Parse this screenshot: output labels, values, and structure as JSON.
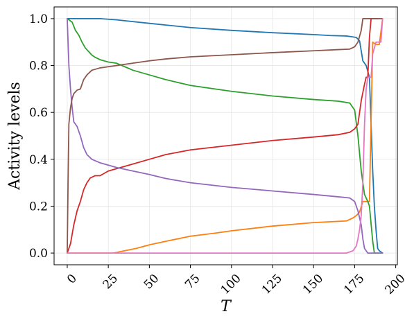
{
  "chart_data": {
    "type": "line",
    "xlabel": "T",
    "ylabel": "Activity levels",
    "xlim": [
      -8,
      201
    ],
    "ylim": [
      -0.05,
      1.05
    ],
    "xticks": [
      0,
      25,
      50,
      75,
      100,
      125,
      150,
      175,
      200
    ],
    "yticks": [
      0.0,
      0.2,
      0.4,
      0.6,
      0.8,
      1.0
    ],
    "ytick_labels": [
      "0.0",
      "0.2",
      "0.4",
      "0.6",
      "0.8",
      "1.0"
    ],
    "grid": true,
    "series": [
      {
        "color": "#1f77b4",
        "x": [
          0,
          20,
          30,
          50,
          75,
          100,
          125,
          150,
          160,
          170,
          176,
          178,
          180,
          182,
          184,
          185,
          186,
          187,
          188,
          189,
          190,
          192
        ],
        "y": [
          1.0,
          1.0,
          0.995,
          0.98,
          0.962,
          0.95,
          0.94,
          0.932,
          0.928,
          0.926,
          0.92,
          0.905,
          0.82,
          0.8,
          0.75,
          0.55,
          0.35,
          0.2,
          0.1,
          0.02,
          0.01,
          0.0
        ]
      },
      {
        "color": "#ff7f0e",
        "x": [
          0,
          20,
          28,
          35,
          42,
          50,
          60,
          75,
          90,
          100,
          125,
          150,
          170,
          174,
          176,
          178,
          180,
          182,
          184,
          186,
          188,
          190,
          192
        ],
        "y": [
          0.0,
          0.0,
          0.0,
          0.01,
          0.02,
          0.035,
          0.05,
          0.072,
          0.085,
          0.095,
          0.115,
          0.13,
          0.137,
          0.15,
          0.16,
          0.175,
          0.22,
          0.22,
          0.22,
          0.9,
          0.89,
          0.89,
          1.0
        ]
      },
      {
        "color": "#2ca02c",
        "x": [
          0,
          3,
          5,
          7,
          9,
          11,
          13,
          15,
          17,
          20,
          25,
          30,
          35,
          40,
          50,
          60,
          75,
          100,
          125,
          150,
          165,
          172,
          175,
          177,
          179,
          181,
          183,
          184,
          186,
          187,
          188,
          190
        ],
        "y": [
          1.0,
          0.985,
          0.95,
          0.93,
          0.9,
          0.875,
          0.86,
          0.845,
          0.835,
          0.825,
          0.815,
          0.81,
          0.795,
          0.78,
          0.76,
          0.74,
          0.715,
          0.69,
          0.67,
          0.655,
          0.648,
          0.64,
          0.61,
          0.5,
          0.35,
          0.25,
          0.22,
          0.2,
          0.05,
          0.0,
          0.0,
          0.0
        ]
      },
      {
        "color": "#d62728",
        "x": [
          0,
          1,
          2,
          4,
          6,
          8,
          10,
          12,
          14,
          17,
          20,
          25,
          30,
          40,
          50,
          60,
          75,
          100,
          125,
          150,
          165,
          172,
          175,
          177,
          179,
          181,
          182,
          183,
          184,
          185,
          186,
          188,
          190
        ],
        "y": [
          0.0,
          0.02,
          0.04,
          0.12,
          0.18,
          0.22,
          0.27,
          0.3,
          0.32,
          0.33,
          0.33,
          0.35,
          0.36,
          0.38,
          0.4,
          0.42,
          0.44,
          0.46,
          0.48,
          0.495,
          0.505,
          0.515,
          0.53,
          0.55,
          0.65,
          0.72,
          0.75,
          0.75,
          0.92,
          1.0,
          1.0,
          1.0,
          1.0
        ]
      },
      {
        "color": "#9467bd",
        "x": [
          0,
          1,
          2,
          3,
          4,
          6,
          8,
          10,
          12,
          15,
          20,
          25,
          30,
          40,
          50,
          60,
          75,
          100,
          125,
          150,
          165,
          172,
          175,
          177,
          179,
          180,
          181,
          183,
          185,
          188,
          190,
          192
        ],
        "y": [
          1.0,
          0.8,
          0.7,
          0.62,
          0.56,
          0.54,
          0.5,
          0.45,
          0.42,
          0.4,
          0.385,
          0.375,
          0.365,
          0.35,
          0.335,
          0.318,
          0.3,
          0.28,
          0.265,
          0.25,
          0.24,
          0.235,
          0.22,
          0.18,
          0.12,
          0.06,
          0.02,
          0.0,
          0.0,
          0.0,
          0.0,
          0.0
        ]
      },
      {
        "color": "#8c564b",
        "x": [
          0,
          0.5,
          1,
          2,
          3,
          4,
          6,
          8,
          10,
          12,
          15,
          20,
          25,
          30,
          40,
          50,
          60,
          75,
          100,
          125,
          150,
          165,
          172,
          175,
          177,
          179,
          180,
          182,
          185,
          188,
          190,
          192
        ],
        "y": [
          0.0,
          0.3,
          0.55,
          0.62,
          0.66,
          0.68,
          0.695,
          0.7,
          0.74,
          0.76,
          0.78,
          0.79,
          0.795,
          0.8,
          0.81,
          0.82,
          0.828,
          0.837,
          0.846,
          0.855,
          0.863,
          0.868,
          0.87,
          0.88,
          0.9,
          0.95,
          1.0,
          1.0,
          1.0,
          1.0,
          1.0,
          1.0
        ]
      },
      {
        "color": "#e377c2",
        "x": [
          0,
          25,
          50,
          75,
          100,
          125,
          150,
          170,
          174,
          176,
          177,
          178,
          179,
          180,
          181,
          182,
          183,
          184,
          185,
          186,
          188,
          190,
          191,
          192
        ],
        "y": [
          0.0,
          0.0,
          0.0,
          0.0,
          0.0,
          0.0,
          0.0,
          0.0,
          0.01,
          0.03,
          0.06,
          0.1,
          0.16,
          0.3,
          0.55,
          0.7,
          0.75,
          0.75,
          0.75,
          0.85,
          0.9,
          0.9,
          0.9,
          1.0
        ]
      }
    ]
  }
}
